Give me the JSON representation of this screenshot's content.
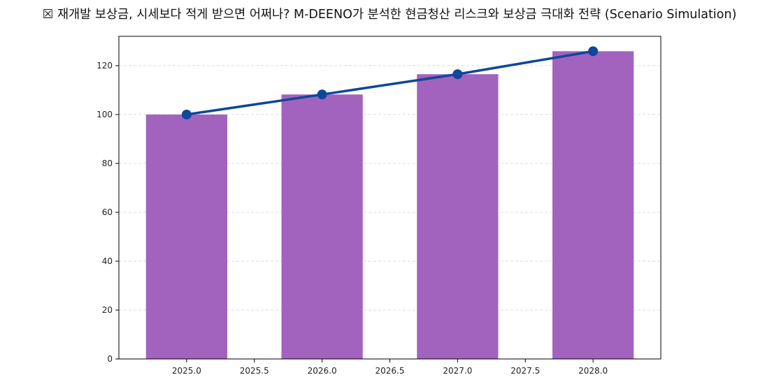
{
  "chart_data": {
    "type": "bar",
    "title": "☒ 재개발 보상금, 시세보다 적게 받으면 어쩌나? M-DEENO가 분석한 현금청산 리스크와 보상금 극대화 전략 (Scenario Simulation)",
    "xlabel": "",
    "ylabel": "",
    "x": [
      2025,
      2026,
      2027,
      2028
    ],
    "series": [
      {
        "type": "bar",
        "values": [
          100,
          108.2,
          116.5,
          125.9
        ],
        "color": "#a263be"
      },
      {
        "type": "line",
        "values": [
          100,
          108.2,
          116.5,
          125.9
        ],
        "color": "#0f479b",
        "marker": "circle"
      }
    ],
    "xlim": [
      2024.5,
      2028.5
    ],
    "ylim": [
      0,
      132
    ],
    "xticks": [
      2025.0,
      2025.5,
      2026.0,
      2026.5,
      2027.0,
      2027.5,
      2028.0
    ],
    "xtick_labels": [
      "2025.0",
      "2025.5",
      "2026.0",
      "2026.5",
      "2027.0",
      "2027.5",
      "2028.0"
    ],
    "yticks": [
      0,
      20,
      40,
      60,
      80,
      100,
      120
    ],
    "ytick_labels": [
      "0",
      "20",
      "40",
      "60",
      "80",
      "100",
      "120"
    ],
    "bar_width": 0.6,
    "grid": {
      "y": true,
      "x": false,
      "style": "dashed",
      "color": "#d0d0d0"
    },
    "legend": "none"
  }
}
